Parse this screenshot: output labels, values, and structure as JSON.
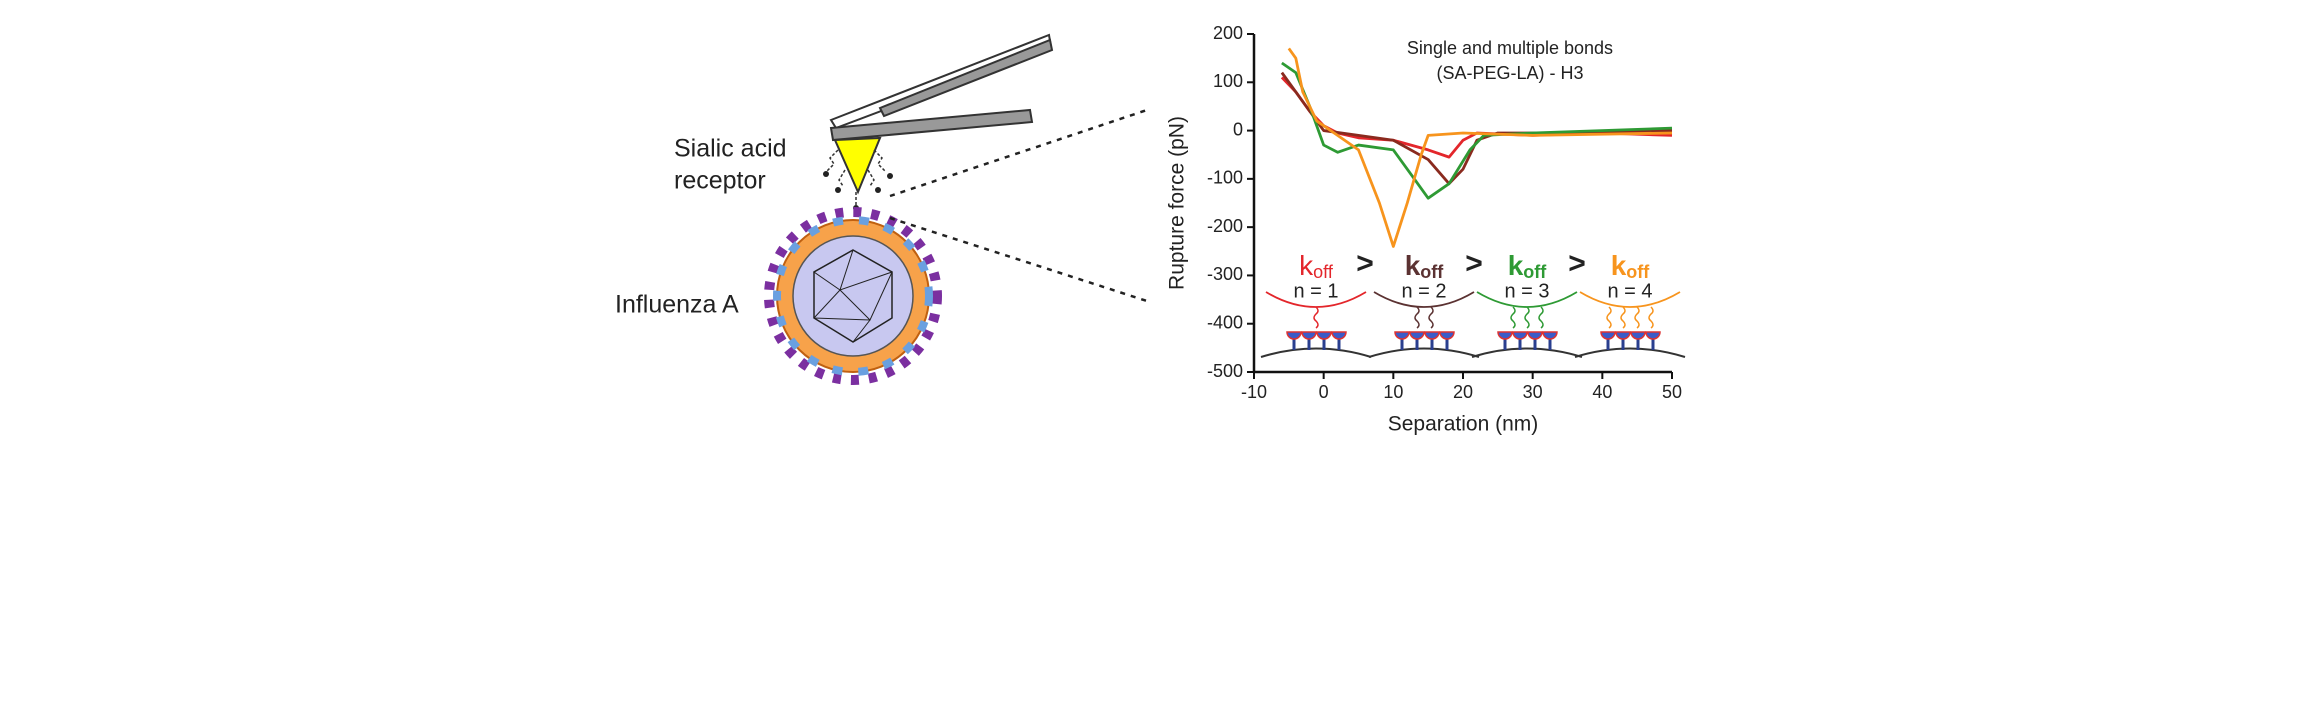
{
  "labels": {
    "receptor": [
      "Sialic acid",
      "receptor"
    ],
    "virus": "Influenza A"
  },
  "chart_data": {
    "type": "line",
    "title": "Single and multiple bonds",
    "subtitle": "(SA-PEG-LA) - H3",
    "xlabel": "Separation (nm)",
    "ylabel": "Rupture force (pN)",
    "xlim": [
      -10,
      50
    ],
    "ylim": [
      -500,
      200
    ],
    "xticks": [
      -10,
      0,
      10,
      20,
      30,
      40,
      50
    ],
    "yticks": [
      -500,
      -400,
      -300,
      -200,
      -100,
      0,
      100,
      200
    ],
    "series": [
      {
        "color": "#e3262b",
        "x": [
          -6,
          -4,
          -2,
          0,
          2,
          5,
          10,
          15,
          18,
          20,
          22,
          30,
          40,
          50
        ],
        "values": [
          110,
          80,
          40,
          10,
          -5,
          -15,
          -20,
          -40,
          -55,
          -20,
          -5,
          -10,
          -5,
          -10
        ]
      },
      {
        "color": "#8a2a1e",
        "x": [
          -6,
          -3,
          0,
          5,
          10,
          15,
          18,
          20,
          22,
          25,
          35,
          50
        ],
        "values": [
          120,
          60,
          0,
          -10,
          -20,
          -60,
          -110,
          -80,
          -20,
          -5,
          -5,
          0
        ]
      },
      {
        "color": "#2e9a34",
        "x": [
          -6,
          -4,
          -2,
          0,
          2,
          5,
          10,
          13,
          15,
          18,
          21,
          23,
          30,
          50
        ],
        "values": [
          140,
          120,
          50,
          -30,
          -45,
          -30,
          -40,
          -100,
          -140,
          -110,
          -40,
          -10,
          -5,
          5
        ]
      },
      {
        "color": "#f7941d",
        "x": [
          -5,
          -4,
          -3,
          -1,
          2,
          5,
          8,
          10,
          12,
          14,
          15,
          20,
          30,
          50
        ],
        "values": [
          170,
          150,
          80,
          20,
          -10,
          -40,
          -150,
          -240,
          -150,
          -50,
          -10,
          -5,
          -10,
          -5
        ]
      }
    ],
    "inset": [
      {
        "symbol": "k",
        "subscript": "off",
        "n": "n = 1",
        "color": "#e3262b"
      },
      {
        "symbol": "k",
        "subscript": "off",
        "n": "n = 2",
        "color": "#5b3232"
      },
      {
        "symbol": "k",
        "subscript": "off",
        "n": "n = 3",
        "color": "#2e9a34"
      },
      {
        "symbol": "k",
        "subscript": "off",
        "n": "n = 4",
        "color": "#f7941d"
      }
    ],
    "comparators": [
      ">",
      ">",
      ">"
    ]
  }
}
